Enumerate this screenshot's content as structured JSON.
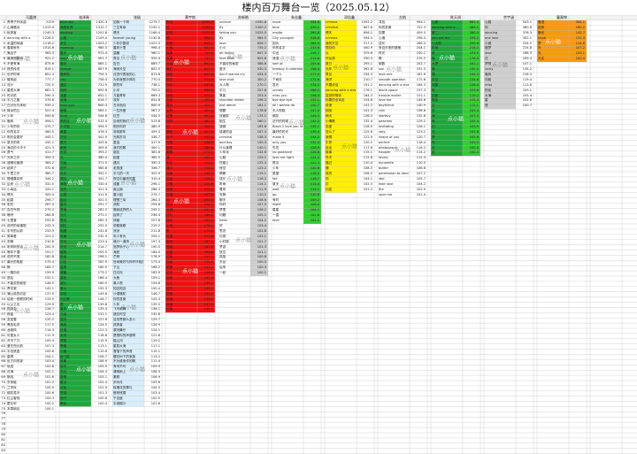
{
  "title": "楼内百万舞台一览（2025.05.12）",
  "watermark_text": "点小猫",
  "colors": {
    "white": "#ffffff",
    "green": "#20a63c",
    "light_blue": "#d9eefa",
    "red": "#ee1111",
    "gray": "#cfcfcf",
    "yellow": "#ffee00",
    "bright_green": "#33cc33",
    "orange": "#f59a16",
    "blue": "#1ea8e8",
    "grid": "#b9b9b9",
    "header": "#f2f2f2"
  },
  "headers": [
    "马嘉祺",
    "张泽禹",
    "张极",
    "黄宇航",
    "苏新皓",
    "朱志鑫",
    "邓佳鑫",
    "左航",
    "陈天润",
    "余宇涵",
    "童禹坤",
    "穆祉丞",
    "周峻纬",
    "王橹杰",
    "姚昱辰",
    "孙皓",
    "严浩翔",
    "程鑫"
  ],
  "columns": [
    {
      "names": [
        "青青子衿序曲",
        "山海路远",
        "秋风客",
        "dancing with a",
        "余温的味道",
        "春夏秋冬",
        "鬼谷子",
        "最美的期待",
        "不是有海",
        "夜的传说",
        "也许时间",
        "微风起",
        "流沙",
        "星辰大海",
        "时光机",
        "平凡之路",
        "白月光与朱砂",
        "故乡的云",
        "少年",
        "晚风",
        "少年的你",
        "你的名字",
        "明天会更好",
        "夏天的风",
        "海边的卡夫卡",
        "勇气",
        "光年之外",
        "遗憾也值得",
        "起风了",
        "千里之外",
        "慢慢喜欢你",
        "后来",
        "小幸运",
        "晴天",
        "稻香",
        "彩虹",
        "告白气球",
        "暗号",
        "七里香",
        "说好的幸福呢",
        "手写的从前",
        "简单爱",
        "安静",
        "听妈妈的话",
        "等你下课",
        "说好不哭",
        "最长的电影",
        "枫",
        "一路向北",
        "退后",
        "不能说的秘密",
        "青花瓷",
        "蒲公英的约定",
        "给我一首歌的时间",
        "以父之名",
        "园游会",
        "夜曲",
        "发如雪",
        "黑色毛衣",
        "龙卷风",
        "可爱女人",
        "开不了口",
        "爱在西元前",
        "半岛铁盒",
        "星晴",
        "反方向的钟",
        "轨迹",
        "花海",
        "搁浅",
        "东风破",
        "兰亭序",
        "烟花易冷",
        "红尘客栈",
        "霍元甲",
        "本草纲目"
      ],
      "values": [
        2159,
        1413.9,
        1240.3,
        1226.5,
        1218.2,
        1014.6,
        963.3,
        921.2,
        875.6,
        819.1,
        801.3,
        777.7,
        725.5,
        681.3,
        590.3,
        575.6,
        535.2,
        521.4,
        500.6,
        494.1,
        475.7,
        460.5,
        445.1,
        432.1,
        421.3,
        411.7,
        399.3,
        384.2,
        372.6,
        360.7,
        344.2,
        331.5,
        320.1,
        309.4,
        298.7,
        287.4,
        275.2,
        264.8,
        252.6,
        243.3,
        233.9,
        221.2,
        210.8,
        200.9,
        191.1,
        182.8,
        175.4,
        165.7,
        159.9,
        152.1,
        146.5,
        142.1,
        137.9,
        133.5,
        129.9,
        126.7,
        123.4,
        120.2,
        117.5,
        114.3,
        111.9,
        109.4,
        107.3,
        105.6,
        104.1,
        103.4,
        102.8,
        102.1,
        101.6,
        101.2,
        100.9,
        100.6,
        100.3,
        100.2,
        100.1
      ],
      "name_fill": "white",
      "val_fill": "white"
    },
    {
      "names": [
        "blue sky",
        "海底世界",
        "dancing",
        "心愿",
        "余生",
        "morning",
        "星光",
        "warm",
        "晚安",
        "forever",
        "晚风吹",
        "city",
        "遇见",
        "你好",
        "流星",
        "深海",
        "miss you",
        "慢慢",
        "time",
        "风吹过",
        "小宇宙",
        "黄昏",
        "初见",
        "夏日",
        "雨夜",
        "天空",
        "光",
        "归途",
        "花开",
        "月光",
        "晴空",
        "海浪",
        "追光",
        "心跳",
        "起点",
        "星河",
        "梦境",
        "远方",
        "思念",
        "回忆",
        "相遇",
        "风景",
        "岁月",
        "时光",
        "微笑",
        "旅途",
        "约定",
        "温柔",
        "清晨",
        "暮色",
        "烟火",
        "萤火",
        "彩虹",
        "向日葵",
        "雪",
        "春风",
        "云朵",
        "银河",
        "海风",
        "日落",
        "未来",
        "梦想",
        "青春",
        "小镇",
        "纸飞机",
        "风筝",
        "秋天",
        "冬日",
        "夏夜",
        "星空",
        "月色",
        "梦游",
        "旅行",
        "舞台"
      ],
      "values": [
        1420.3,
        1312.7,
        1201.8,
        1109.4,
        1003.2,
        985.5,
        972.4,
        901.7,
        865.1,
        807.9,
        794.3,
        756.4,
        731.9,
        692.8,
        652.1,
        614.7,
        600.3,
        565.1,
        544.6,
        512.4,
        494.5,
        476.3,
        441.9,
        425.8,
        409.6,
        393.2,
        380.4,
        371.5,
        360.8,
        352.1,
        341.7,
        330.4,
        321.3,
        311.9,
        301.5,
        291.7,
        281.2,
        271.1,
        262.3,
        252.5,
        241.8,
        232.9,
        223.4,
        214.7,
        205.5,
        196.1,
        187.9,
        180.5,
        173.2,
        166.4,
        160.5,
        155.3,
        149.6,
        144.7,
        139.8,
        135.4,
        131.1,
        127.6,
        124.5,
        121.3,
        118.6,
        115.9,
        113.1,
        110.6,
        108.7,
        106.9,
        105.5,
        104.3,
        103.1,
        102.4,
        101.9,
        101.3,
        100.8,
        100.4
      ],
      "name_fill": "green",
      "val_fill": "white"
    },
    {
      "names": [
        "如我一个吻",
        "三生有幸",
        "晴天",
        "forever young",
        "少年中国说",
        "春风十里",
        "温暖",
        "再见",
        "告白",
        "海阔天空",
        "月亮代表我的心",
        "为你我受冷风吹",
        "那些年",
        "小半",
        "万能青年",
        "流年",
        "左手指月",
        "一生所爱",
        "红豆",
        "后来的我们",
        "明天你好",
        "匆匆那年",
        "光辉岁月",
        "童话",
        "我们的歌",
        "朋友",
        "稻香",
        "遇见",
        "老男孩",
        "平凡的一天",
        "夜空中最亮的星",
        "成都",
        "南山南",
        "董小姐",
        "理想三旬",
        "消愁",
        "像我这样的人",
        "起风了",
        "体面",
        "说散就散",
        "凉凉",
        "年少有为",
        "缘分一道桥",
        "追梦赤子心",
        "海底",
        "芒种",
        "世间美好与你环环相扣",
        "下山",
        "白月光",
        "大鱼",
        "离人愁",
        "知否知否",
        "沙漠骆驼",
        "你的答案",
        "少年",
        "飞鸟和蝉",
        "错位时空",
        "这世界那么多人",
        "孤勇者",
        "漠河舞厅",
        "是想你的声音啊",
        "踏山河",
        "星辰大海",
        "雪落下的声音",
        "樱花树下的家族",
        "不为谁而作的歌",
        "有何不可",
        "清明雨上",
        "素颜",
        "庐州月",
        "玫瑰花的葬礼",
        "断桥残雪",
        "千百度",
        "半城烟沙"
      ],
      "values": [
        1275.7,
        1192.1,
        1168.4,
        1130.8,
        1022.3,
        998.4,
        960.1,
        920.4,
        889.7,
        852.5,
        813.8,
        770.5,
        738.1,
        705.2,
        669.3,
        631.8,
        600.9,
        567.2,
        544.5,
        513.8,
        480.9,
        459.3,
        438.7,
        417.9,
        400.1,
        381.8,
        365.5,
        350.3,
        336.7,
        322.9,
        310.4,
        298.1,
        286.3,
        275.7,
        264.3,
        254.8,
        245.1,
        236.4,
        227.8,
        219.2,
        211.6,
        204.1,
        197.3,
        190.5,
        184.4,
        178.9,
        173.4,
        168.2,
        163.9,
        159.1,
        154.8,
        150.4,
        146.7,
        143.3,
        139.5,
        136.1,
        132.8,
        129.7,
        126.9,
        124.1,
        121.6,
        119.2,
        117.1,
        115.1,
        113.2,
        111.4,
        109.9,
        108.3,
        106.9,
        105.6,
        104.5,
        103.4,
        102.5,
        101.6
      ],
      "name_fill": "light_blue",
      "val_fill": "white"
    },
    {
      "names": [
        "烈火",
        "红",
        "炽热",
        "燃",
        "朱雀",
        "火焰",
        "晚霞",
        "玫瑰",
        "赤诚",
        "枫红",
        "绯色",
        "烈日",
        "丹心",
        "红尘",
        "血色",
        "赤焰",
        "霞光",
        "火种",
        "红莲",
        "热烈",
        "灼",
        "骄阳",
        "赤子",
        "丹霞",
        "朱砂",
        "胭脂",
        "绛",
        "彤云",
        "烽火",
        "赤兔",
        "红妆",
        "夕照",
        "赤霄",
        "红缨",
        "炎",
        "焰火",
        "赤城",
        "红叶",
        "烛光",
        "火凤",
        "炙",
        "红霞",
        "赤羽",
        "燃烧",
        "火星",
        "红烛",
        "赤金",
        "朝霞",
        "红杏",
        "赤松",
        "火山",
        "红日",
        "烈焰",
        "红墙",
        "赤道",
        "红旗"
      ],
      "values": [
        1290.2,
        1180.5,
        1075.3,
        984.7,
        902.1,
        843.9,
        789.6,
        737.2,
        690.4,
        647.5,
        607.8,
        571.3,
        537.6,
        506.3,
        477.2,
        450.4,
        425.7,
        402.9,
        381.6,
        362.1,
        344.1,
        327.6,
        312.4,
        298.5,
        285.8,
        274.1,
        263.4,
        253.5,
        244.3,
        235.9,
        228.1,
        220.8,
        214.1,
        207.9,
        202.1,
        196.7,
        191.6,
        186.9,
        182.4,
        178.2,
        174.3,
        170.6,
        167.1,
        163.8,
        160.6,
        157.7,
        154.9,
        152.3,
        149.8,
        147.4,
        145.2,
        143.1,
        141.1,
        139.2,
        137.4,
        135.7
      ],
      "name_fill": "red",
      "val_fill": "red"
    },
    {
      "names": [
        "unicorn",
        "fly",
        "falling you",
        "fly",
        "love",
        "小小",
        "ah loving",
        "love shot",
        "不能说的秘密",
        "夏天",
        "don't wanna cry",
        "love shot",
        "大人物",
        "平凡",
        "黑客",
        "shoulder maker",
        "just dance",
        "想要",
        "双面胶",
        "陌生",
        "遗憾",
        "感谢的话",
        "criminal",
        "bad boy",
        "什么道理",
        "少年派",
        "心跳",
        "在路上",
        "夜空",
        "晴朗",
        "成长",
        "听雨",
        "看风",
        "安静",
        "聊天",
        "你好",
        "梦里",
        "问题",
        "hello",
        "好",
        "思念",
        "礼物",
        "小时候",
        "梦游",
        "放空",
        "孤独",
        "天台",
        "后来",
        "一起"
      ],
      "values": [
        1590.8,
        1300.2,
        1025.5,
        984.5,
        856.7,
        735.2,
        647.3,
        625.8,
        588.6,
        530.3,
        433.3,
        300.2,
        270.1,
        257.6,
        253.4,
        196.2,
        181.1,
        178.8,
        174.1,
        160.1,
        165.6,
        167.3,
        158.3,
        150.3,
        140.1,
        132.6,
        129.1,
        125.3,
        123.2,
        119.1,
        116.2,
        114.1,
        111.9,
        110.2,
        108.6,
        107.3,
        106.2,
        105.1,
        104.2,
        103.4,
        102.8,
        102.1,
        101.7,
        101.3,
        101.1,
        100.8,
        100.5,
        100.3,
        100.1
      ],
      "name_fill": "white",
      "val_fill": "gray"
    },
    {
      "names": [
        "more",
        "blue",
        "mojito",
        "City youngish",
        "因为",
        "你的名字",
        "中出",
        "浪漫",
        "sort of",
        "tombay 4 umbrella",
        "一个人",
        "下雨天",
        "发光",
        "unholy",
        "miss you",
        "bye bye bye",
        "all i wanna do",
        "无人知晓",
        "烟花",
        "花开的时候",
        "Black 2 love you like",
        "最好的时光",
        "make it",
        "only you",
        "失恋",
        "no guidance",
        "love me right",
        "再见",
        "少年",
        "愿望",
        "fall",
        "夏天",
        "wait",
        "go",
        "有时",
        "night",
        "星星",
        "一直",
        "love"
      ],
      "values": [
        554.6,
        530.1,
        395.8,
        316.8,
        264.9,
        233.6,
        226.7,
        213.6,
        205.6,
        198.4,
        177.4,
        172.6,
        174.1,
        166.2,
        158.3,
        155.1,
        150.7,
        147.9,
        145.3,
        142.2,
        139.7,
        136.4,
        134.2,
        131.4,
        128.9,
        126.8,
        124.5,
        122.3,
        120.6,
        118.5,
        116.7,
        115.4,
        113.1,
        110.8,
        109.2,
        106.4,
        104.1,
        102.8,
        101.1
      ],
      "name_fill": "white",
      "val_fill": "bright_green"
    },
    {
      "names": [
        "crimina",
        "criminal",
        "晴天",
        "crimina",
        "我的天空",
        "想见你",
        "火",
        "坏女孩",
        "夏日",
        "光年",
        "再见",
        "海洋",
        "不要说话",
        "dancing with a stranger",
        "突然好想你",
        "你要的全拿走",
        "说谎",
        "相信",
        "雨天",
        "小情歌",
        "恋爱",
        "怎么了",
        "我想",
        "牛奶",
        "走走",
        "故事",
        "冬天",
        "路过",
        "猜",
        "真的",
        "你",
        "灯",
        "约定"
      ],
      "values": [
        1052.2,
        847.6,
        656.2,
        594.5,
        517.2,
        440.9,
        375.6,
        330.3,
        295.1,
        262.8,
        234.3,
        210.7,
        191.2,
        176.1,
        164.3,
        154.8,
        147.2,
        141.3,
        136.5,
        132.4,
        128.9,
        125.8,
        122.9,
        120.2,
        117.6,
        115.1,
        112.8,
        110.4,
        108.3,
        106.2,
        104.1,
        102.5,
        101.2
      ],
      "name_fill": "yellow",
      "val_fill": "white"
    },
    {
      "names": [
        "寻找",
        "你的答案",
        "如果",
        "心墙",
        "逆光",
        "来自天堂的魔鬼",
        "时光",
        "歌",
        "倒数",
        "sun",
        "love sick",
        "smooth operator",
        "dancing with a stranger",
        "blank space",
        "trouble maker",
        "love me",
        "boyfriend",
        "rain",
        "starboy",
        "peaches",
        "levitating",
        "stay",
        "shape of you",
        "perfect",
        "photograph",
        "happier",
        "lovely",
        "dynamite",
        "butter",
        "permission to dance",
        "idol",
        "fake love",
        "fire",
        "save me"
      ],
      "values": [
        994.1,
        722.3,
        459.5,
        296.4,
        266.3,
        244.1,
        230.1,
        215.2,
        202.7,
        191.3,
        181.6,
        172.6,
        164.3,
        157.3,
        151.1,
        145.6,
        140.9,
        136.6,
        132.8,
        129.2,
        126.1,
        123.2,
        120.7,
        118.4,
        116.2,
        114.2,
        112.3,
        110.5,
        108.8,
        107.2,
        105.7,
        104.2,
        102.9,
        101.4
      ],
      "name_fill": "white",
      "val_fill": "white"
    },
    {
      "names": [
        "心愿",
        "dancing with a",
        "第二",
        "you are my",
        "小太阳",
        "时间",
        "说",
        "晚",
        "大梦",
        "离",
        "想",
        "天空",
        "流星",
        "听",
        "回家",
        "夏至",
        "云",
        "念",
        "海",
        "风",
        "约",
        "光",
        "梦",
        "你",
        "月",
        "走"
      ],
      "values": [
        861.2,
        465.1,
        380.4,
        295.2,
        250.6,
        218.2,
        193.5,
        176.5,
        161.2,
        150.1,
        141.3,
        134.6,
        128.4,
        123.6,
        119.2,
        115.3,
        112.1,
        109.4,
        107.2,
        105.4,
        103.9,
        102.8,
        101.9,
        101.2,
        100.6,
        100.2
      ],
      "name_fill": "green",
      "val_fill": "bright_green"
    },
    {
      "names": [
        "心跳",
        "你",
        "dancing",
        "one love",
        "小城",
        "做梦",
        "love",
        "花",
        "梦想",
        "lucky",
        "晚风",
        "向前",
        "miss",
        "别走",
        "大海",
        "星",
        "怪"
      ],
      "values": [
        543.1,
        460.8,
        376.3,
        302.1,
        254.5,
        214.8,
        186.3,
        163.4,
        147.1,
        135.2,
        126.3,
        119.4,
        113.8,
        109.1,
        105.4,
        102.6,
        100.7
      ],
      "name_fill": "gray",
      "val_fill": "white"
    },
    {
      "names": [
        "鬼怪",
        "信仰",
        "晚安",
        "hope",
        "梦",
        "叶",
        "光",
        "无名"
      ],
      "values": [
        264.1,
        180.2,
        142.7,
        125.3,
        114.8,
        107.2,
        103.1,
        100.4
      ],
      "name_fill": "orange",
      "val_fill": "orange"
    },
    {
      "names": [
        "hot",
        "fly",
        "不要想你了",
        "小蓝"
      ],
      "values": [
        254.1,
        187.3,
        138.6,
        112.2
      ],
      "name_fill": "blue",
      "val_fill": "blue"
    }
  ]
}
